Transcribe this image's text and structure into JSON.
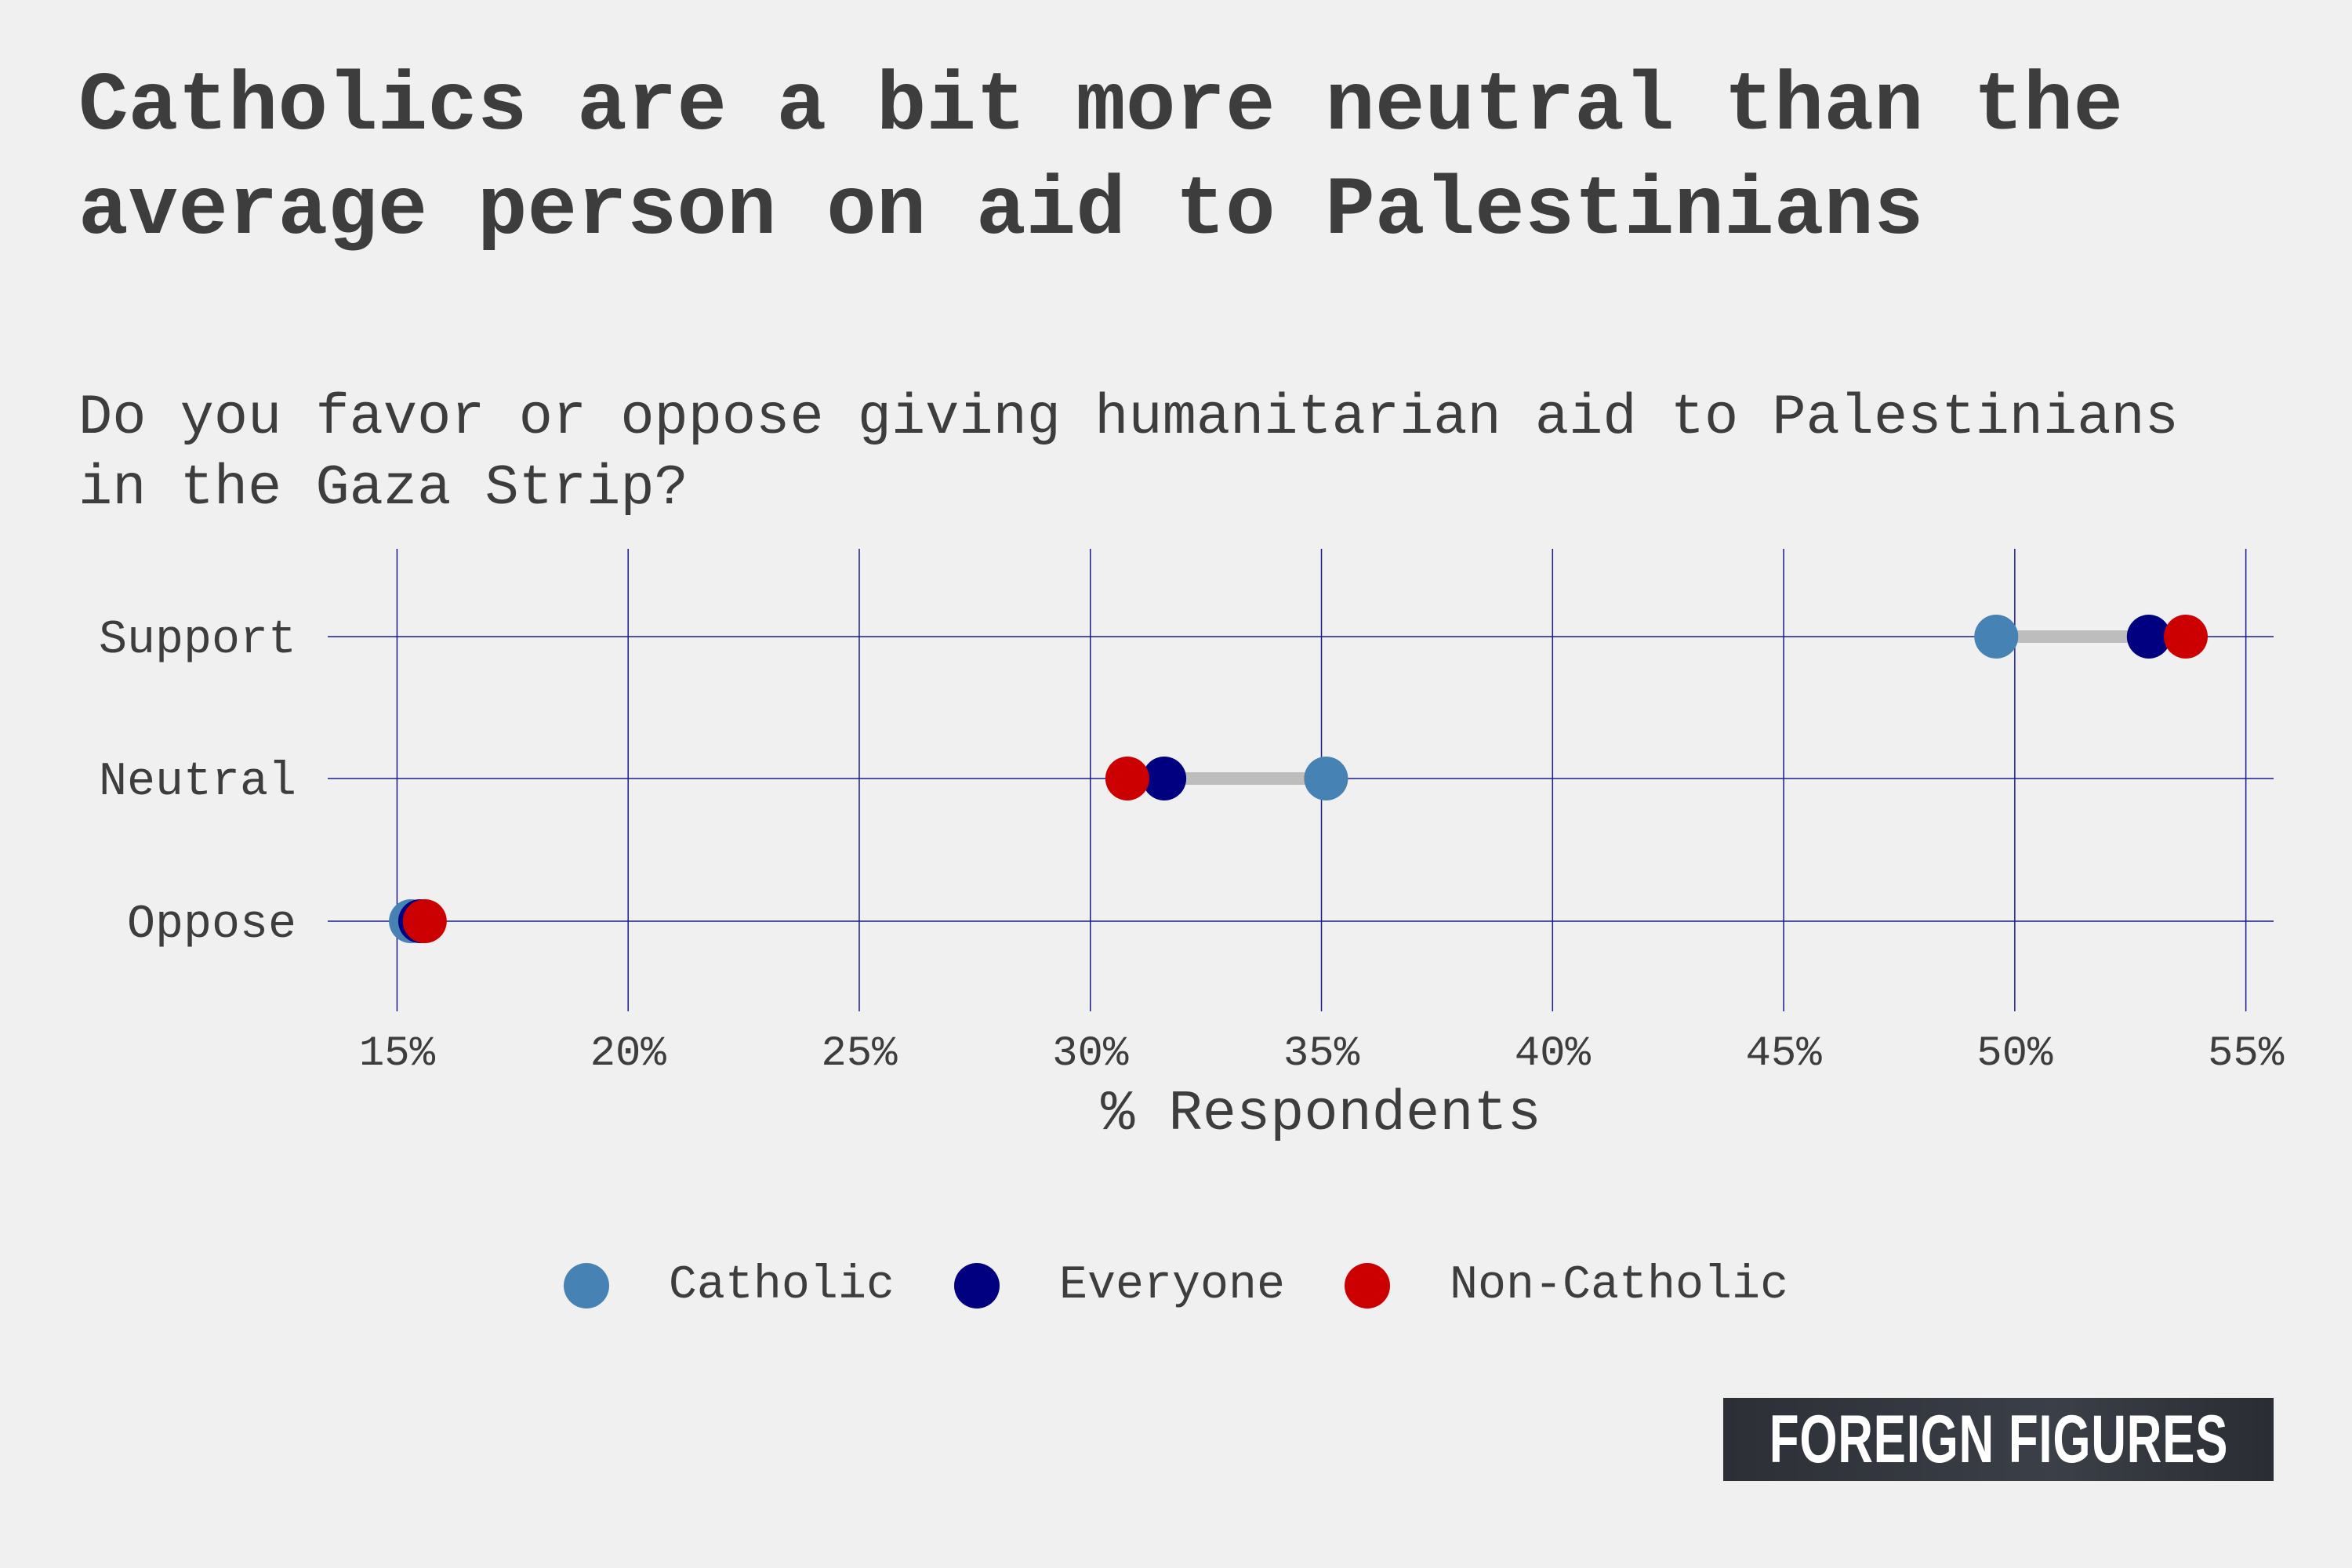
{
  "title": "Catholics are a bit more neutral than the average person on aid to Palestinians",
  "subtitle": "Do you favor or oppose giving humanitarian aid to Palestinians in the Gaza Strip?",
  "brand": "FOREIGN FIGURES",
  "colors": {
    "background": "#f0f0f0",
    "grid": "#1a1a8c",
    "connector": "#bdbdbd",
    "text": "#3d3d3d"
  },
  "chart_data": {
    "type": "dumbbell",
    "categories": [
      "Support",
      "Neutral",
      "Oppose"
    ],
    "xlabel": "% Respondents",
    "ylabel": "",
    "xlim": [
      13.5,
      55.6
    ],
    "xticks": [
      15,
      20,
      25,
      30,
      35,
      40,
      45,
      50,
      55
    ],
    "xtick_labels": [
      "15%",
      "20%",
      "25%",
      "30%",
      "35%",
      "40%",
      "45%",
      "50%",
      "55%"
    ],
    "grid": true,
    "legend_position": "bottom",
    "series": [
      {
        "name": "Catholic",
        "color": "#4682b4",
        "values": [
          49.6,
          35.1,
          15.3
        ]
      },
      {
        "name": "Everyone",
        "color": "#000080",
        "values": [
          52.9,
          31.6,
          15.5
        ]
      },
      {
        "name": "Non-Catholic",
        "color": "#cc0000",
        "values": [
          53.7,
          30.8,
          15.6
        ]
      }
    ]
  }
}
